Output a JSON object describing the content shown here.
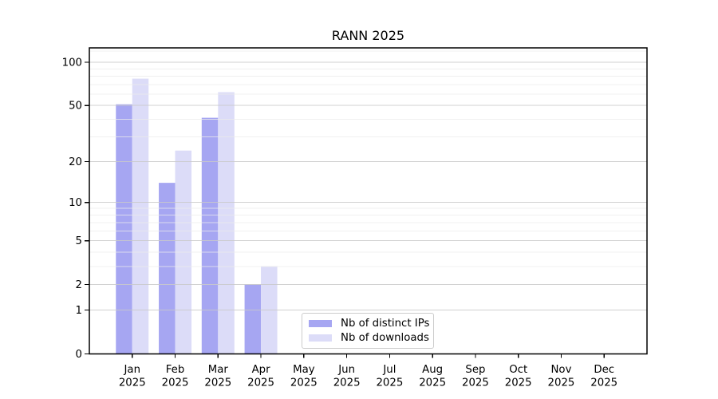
{
  "chart_data": {
    "type": "bar",
    "title": "RANN 2025",
    "categories": [
      {
        "month": "Jan",
        "year": "2025"
      },
      {
        "month": "Feb",
        "year": "2025"
      },
      {
        "month": "Mar",
        "year": "2025"
      },
      {
        "month": "Apr",
        "year": "2025"
      },
      {
        "month": "May",
        "year": "2025"
      },
      {
        "month": "Jun",
        "year": "2025"
      },
      {
        "month": "Jul",
        "year": "2025"
      },
      {
        "month": "Aug",
        "year": "2025"
      },
      {
        "month": "Sep",
        "year": "2025"
      },
      {
        "month": "Oct",
        "year": "2025"
      },
      {
        "month": "Nov",
        "year": "2025"
      },
      {
        "month": "Dec",
        "year": "2025"
      }
    ],
    "series": [
      {
        "name": "Nb of distinct IPs",
        "color": "#a6a6f2",
        "values": [
          51,
          14,
          41,
          2,
          0,
          0,
          0,
          0,
          0,
          0,
          0,
          0
        ]
      },
      {
        "name": "Nb of downloads",
        "color": "#dcdcf8",
        "values": [
          77,
          24,
          62,
          3,
          0,
          0,
          0,
          0,
          0,
          0,
          0,
          0
        ]
      }
    ],
    "yscale": "log10(1+y)",
    "ylim": [
      0,
      126
    ],
    "yticks": [
      0,
      1,
      2,
      5,
      10,
      20,
      50,
      100
    ],
    "minor_gridlines": [
      3,
      4,
      6,
      7,
      8,
      9,
      30,
      40,
      60,
      70,
      80,
      90,
      120
    ],
    "grid": true,
    "legend": {
      "position": "lower-center-left",
      "items": [
        {
          "label": "Nb of distinct IPs"
        },
        {
          "label": "Nb of downloads"
        }
      ]
    },
    "colors": {
      "axis": "#000000",
      "major_grid": "#c9c9c9",
      "minor_grid": "#ebebeb",
      "text": "#000000",
      "background": "#ffffff"
    }
  }
}
